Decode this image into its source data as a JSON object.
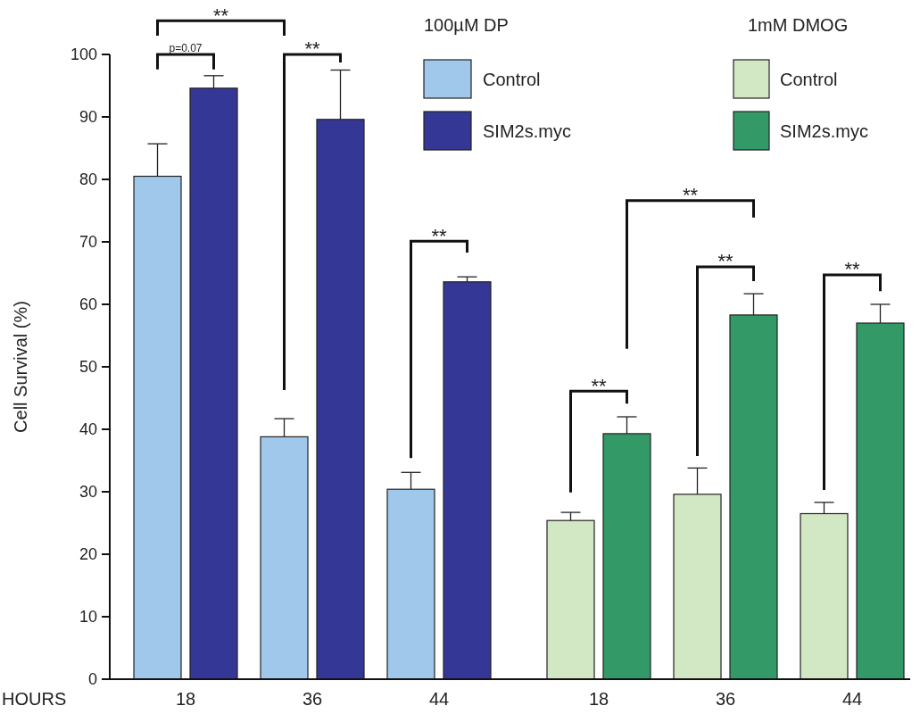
{
  "chart_data": {
    "type": "bar",
    "ylabel": "Cell Survival (%)",
    "xlabel": "HOURS",
    "categories": [
      "18",
      "36",
      "44",
      "18",
      "36",
      "44"
    ],
    "series": [
      {
        "name": "Control",
        "color": "#9fc8ea",
        "values": [
          80.5,
          38.8,
          30.4,
          null,
          null,
          null
        ],
        "errors": [
          5.2,
          2.9,
          2.7,
          null,
          null,
          null
        ]
      },
      {
        "name": "SIM2s.myc",
        "color": "#343795",
        "values": [
          94.6,
          89.6,
          63.6,
          null,
          null,
          null
        ],
        "errors": [
          2.0,
          7.9,
          0.8,
          null,
          null,
          null
        ]
      },
      {
        "name": "Control",
        "color": "#d2e8c5",
        "values": [
          null,
          null,
          null,
          25.4,
          29.6,
          26.5
        ],
        "errors": [
          null,
          null,
          null,
          1.3,
          4.2,
          1.8
        ]
      },
      {
        "name": "SIM2s.myc",
        "color": "#339966",
        "values": [
          null,
          null,
          null,
          39.3,
          58.3,
          57.0
        ],
        "errors": [
          null,
          null,
          null,
          2.7,
          3.4,
          3.0
        ]
      }
    ],
    "ylim": [
      0,
      100
    ],
    "yticks": [
      0,
      10,
      20,
      30,
      40,
      50,
      60,
      70,
      80,
      90,
      100
    ],
    "legend": "top right",
    "annotations": [
      "**",
      "p=0.07",
      "**",
      "**",
      "**",
      "**",
      "**",
      "**",
      "100µM DP",
      "1mM DMOG"
    ]
  }
}
